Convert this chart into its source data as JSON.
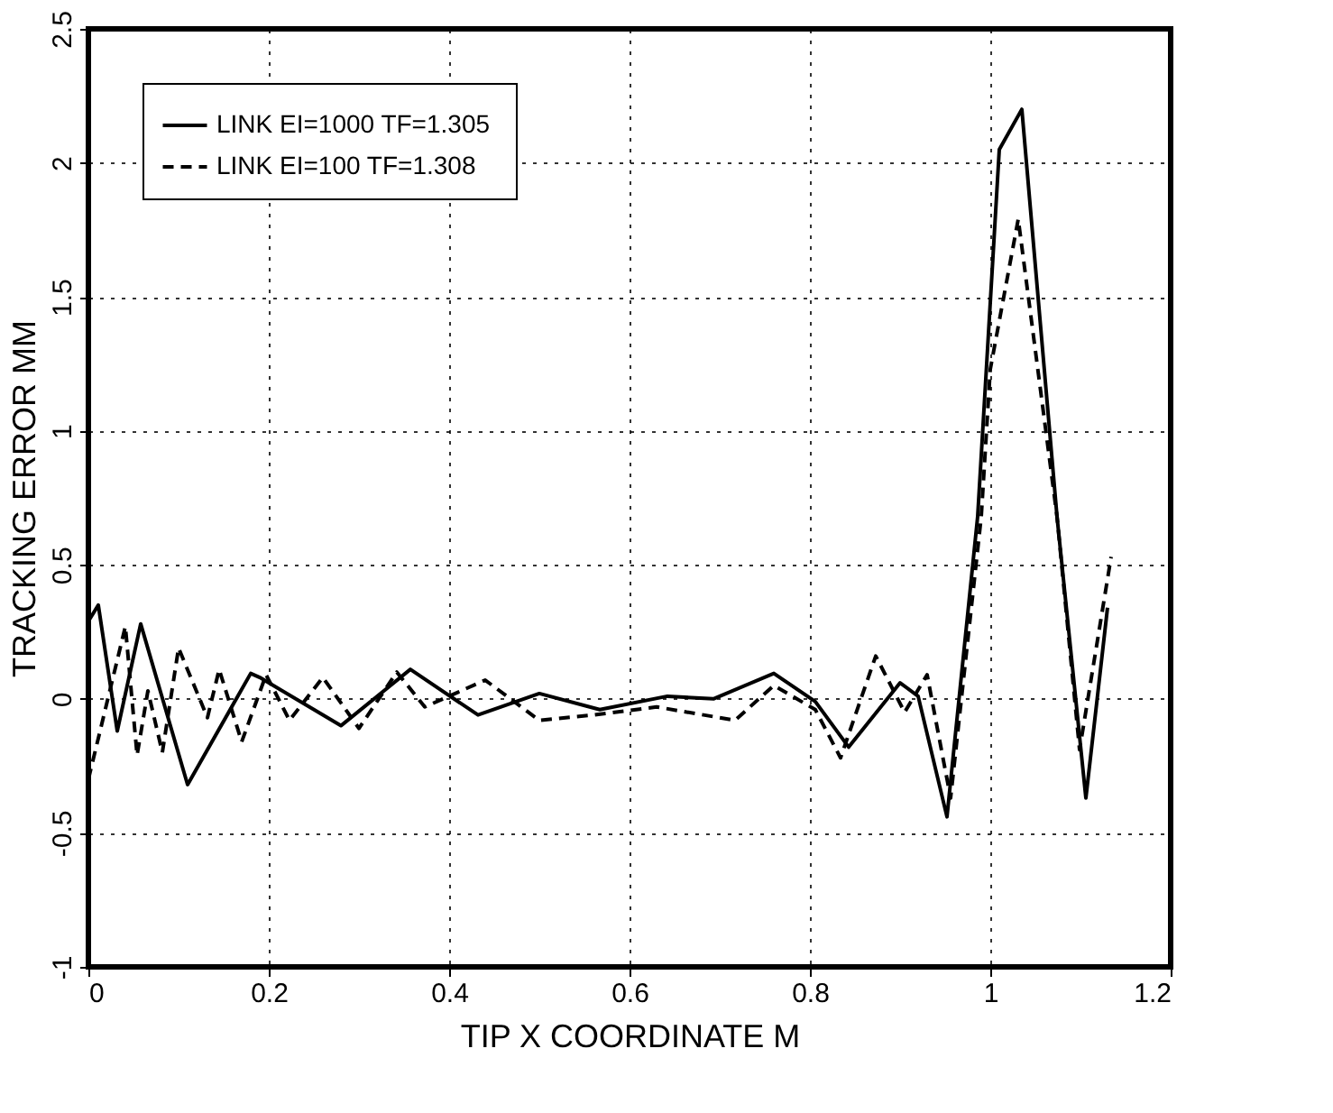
{
  "chart_data": {
    "type": "line",
    "xlabel": "TIP X COORDINATE  M",
    "ylabel": "TRACKING ERROR  MM",
    "xlim": [
      0,
      1.2
    ],
    "xticks": [
      0,
      0.2,
      0.4,
      0.6,
      0.8,
      1,
      1.2
    ],
    "ylim": [
      -1,
      2.5
    ],
    "yticks": [
      -1,
      -0.5,
      0,
      0.5,
      1,
      1.5,
      2,
      2.5
    ],
    "grid": true,
    "legend": "top left",
    "marker": "none",
    "series": [
      {
        "name": "LINK EI=1000  TF=1.305",
        "color": "#000000",
        "line_style": "solid",
        "x": [
          0,
          0.011,
          0.032,
          0.058,
          0.11,
          0.18,
          0.19,
          0.28,
          0.357,
          0.432,
          0.5,
          0.567,
          0.642,
          0.693,
          0.76,
          0.806,
          0.843,
          0.9,
          0.92,
          0.952,
          0.986,
          1.01,
          1.035,
          1.074,
          1.106,
          1.13
        ],
        "values": [
          0.29,
          0.35,
          -0.12,
          0.28,
          -0.32,
          0.095,
          0.08,
          -0.1,
          0.11,
          -0.06,
          0.02,
          -0.04,
          0.01,
          0,
          0.095,
          -0.01,
          -0.18,
          0.06,
          0.01,
          -0.44,
          0.68,
          2.05,
          2.2,
          0.68,
          -0.37,
          0.34
        ]
      },
      {
        "name": "LINK EI=100   TF=1.308",
        "color": "#000000",
        "line_style": "dashed",
        "x": [
          0,
          0.041,
          0.054,
          0.066,
          0.082,
          0.1,
          0.132,
          0.145,
          0.17,
          0.197,
          0.223,
          0.26,
          0.3,
          0.342,
          0.373,
          0.44,
          0.5,
          0.56,
          0.63,
          0.717,
          0.76,
          0.806,
          0.834,
          0.873,
          0.905,
          0.93,
          0.956,
          0.99,
          1.0,
          1.031,
          1.074,
          1.099,
          1.134
        ],
        "values": [
          -0.3,
          0.27,
          -0.21,
          0.03,
          -0.2,
          0.19,
          -0.07,
          0.11,
          -0.16,
          0.09,
          -0.08,
          0.08,
          -0.11,
          0.1,
          -0.03,
          0.07,
          -0.08,
          -0.06,
          -0.03,
          -0.08,
          0.05,
          -0.04,
          -0.22,
          0.16,
          -0.05,
          0.09,
          -0.37,
          0.68,
          1.23,
          1.79,
          0.68,
          -0.19,
          0.53
        ]
      }
    ]
  }
}
